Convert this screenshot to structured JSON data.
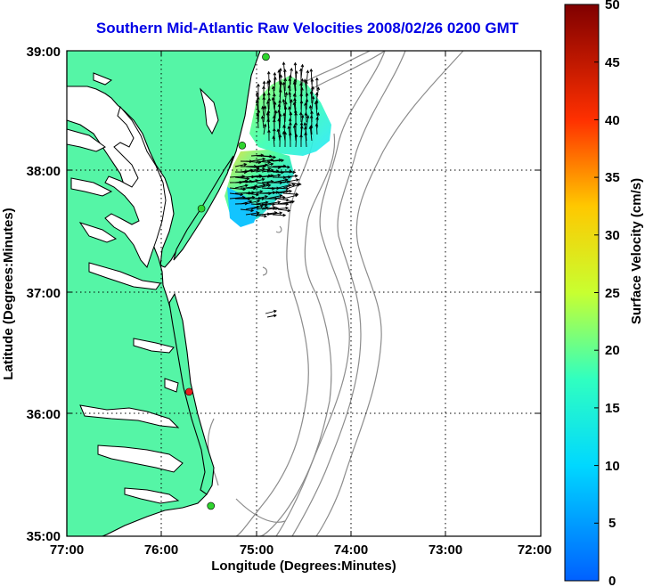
{
  "title": "Southern Mid-Atlantic Raw Velocities 2008/02/26 0200 GMT",
  "xlabel": "Longitude (Degrees:Minutes)",
  "ylabel": "Latitude (Degrees:Minutes)",
  "x_ticks": [
    "77:00",
    "76:00",
    "75:00",
    "74:00",
    "73:00",
    "72:00"
  ],
  "y_ticks": [
    "39:00",
    "38:00",
    "37:00",
    "36:00",
    "35:00"
  ],
  "colorbar": {
    "label": "Surface Velocity (cm/s)",
    "ticks": [
      "50",
      "45",
      "40",
      "35",
      "30",
      "25",
      "20",
      "15",
      "10",
      "5",
      "0"
    ],
    "range": [
      0,
      50
    ]
  },
  "colors": {
    "land": "#55f5a6",
    "bathymetry": "#8c8c8c",
    "coast": "#000000",
    "station_green": "#2fd42f",
    "station_red": "#e82020",
    "title": "#0000e6"
  },
  "stations": [
    {
      "lon": -74.9,
      "lat": 38.95,
      "color": "green"
    },
    {
      "lon": -75.15,
      "lat": 38.22,
      "color": "green"
    },
    {
      "lon": -75.58,
      "lat": 37.7,
      "color": "green"
    },
    {
      "lon": -75.71,
      "lat": 36.19,
      "color": "red"
    },
    {
      "lon": -75.48,
      "lat": 35.25,
      "color": "green"
    }
  ]
}
